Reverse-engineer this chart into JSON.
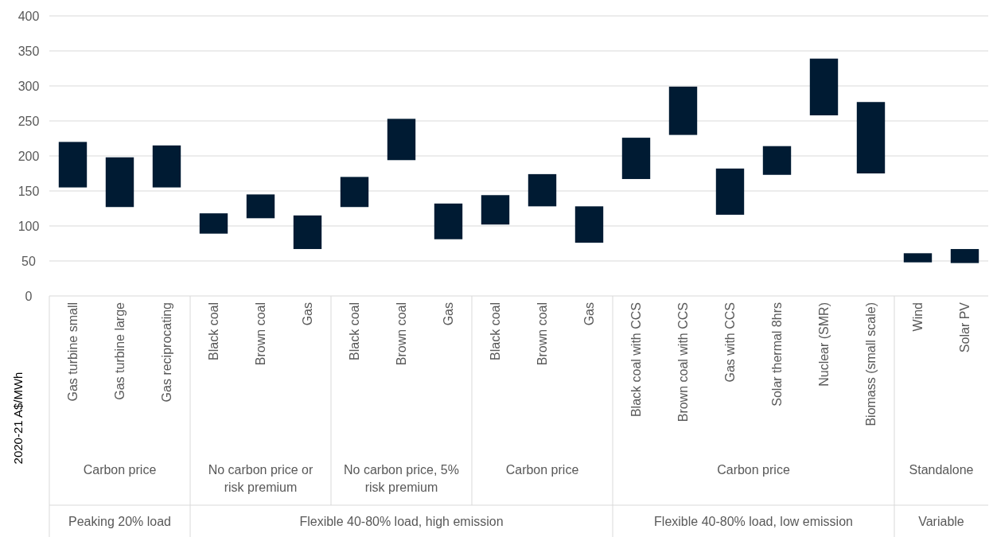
{
  "chart_data": {
    "type": "bar",
    "ylabel": "2020-21 A$/MWh",
    "categories": [
      "Gas turbine small",
      "Gas turbine large",
      "Gas reciprocating",
      "Black coal",
      "Brown coal",
      "Gas",
      "Black coal",
      "Brown coal",
      "Gas",
      "Black coal",
      "Brown coal",
      "Gas",
      "Black coal with CCS",
      "Brown coal with CCS",
      "Gas with CCS",
      "Solar thermal 8hrs",
      "Nuclear (SMR)",
      "Biomass (small scale)",
      "Wind",
      "Solar PV"
    ],
    "base": [
      155,
      127,
      155,
      89,
      111,
      67,
      127,
      194,
      81,
      102,
      128,
      76,
      167,
      230,
      116,
      173,
      258,
      175,
      48,
      47
    ],
    "values": [
      65,
      71,
      60,
      29,
      34,
      48,
      43,
      59,
      51,
      42,
      46,
      52,
      59,
      69,
      66,
      41,
      81,
      102,
      13,
      20
    ],
    "color": "#001b33",
    "ylim": [
      0,
      400
    ],
    "yticks": [
      0,
      50,
      100,
      150,
      200,
      250,
      300,
      350,
      400
    ],
    "grid": "y",
    "annotations": [
      "Carbon price",
      "No carbon price or risk premium",
      "No carbon price, 5% risk premium",
      "Carbon price",
      "Carbon price",
      "Standalone",
      "Peaking 20% load",
      "Flexible 40-80% load, high emission",
      "Flexible 40-80% load, low emission",
      "Variable"
    ]
  }
}
